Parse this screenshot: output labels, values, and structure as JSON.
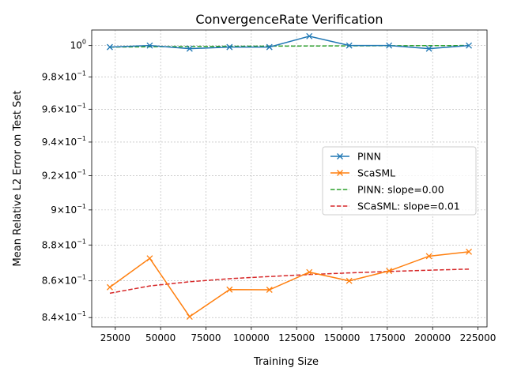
{
  "chart_data": {
    "type": "line",
    "title": "ConvergenceRate Verification",
    "xlabel": "Training Size",
    "ylabel": "Mean Relative L2 Error on Test Set",
    "xlim": [
      12000,
      230000
    ],
    "ylim": [
      0.835,
      1.01
    ],
    "yscale": "log",
    "grid": true,
    "legend_position": "center-right",
    "x_ticks": [
      {
        "value": 25000,
        "label": "25000"
      },
      {
        "value": 50000,
        "label": "50000"
      },
      {
        "value": 75000,
        "label": "75000"
      },
      {
        "value": 100000,
        "label": "100000"
      },
      {
        "value": 125000,
        "label": "125000"
      },
      {
        "value": 150000,
        "label": "150000"
      },
      {
        "value": 175000,
        "label": "175000"
      },
      {
        "value": 200000,
        "label": "200000"
      },
      {
        "value": 225000,
        "label": "225000"
      }
    ],
    "y_ticks": [
      {
        "value": 0.84,
        "base": "8.4",
        "exp": "−1"
      },
      {
        "value": 0.86,
        "base": "8.6",
        "exp": "−1"
      },
      {
        "value": 0.88,
        "base": "8.8",
        "exp": "−1"
      },
      {
        "value": 0.9,
        "base": "9",
        "exp": "−1"
      },
      {
        "value": 0.92,
        "base": "9.2",
        "exp": "−1"
      },
      {
        "value": 0.94,
        "base": "9.4",
        "exp": "−1"
      },
      {
        "value": 0.96,
        "base": "9.6",
        "exp": "−1"
      },
      {
        "value": 0.98,
        "base": "9.8",
        "exp": "−1"
      },
      {
        "value": 1.0,
        "base": "10",
        "exp": "0"
      }
    ],
    "series": [
      {
        "name": "PINN",
        "color": "#1f77b4",
        "style": "solid",
        "marker": "x",
        "x": [
          22000,
          44000,
          66000,
          88000,
          110000,
          132000,
          154000,
          176000,
          198000,
          220000
        ],
        "y": [
          0.999,
          1.0,
          0.998,
          0.999,
          0.999,
          1.006,
          1.0,
          1.0,
          0.998,
          1.0
        ]
      },
      {
        "name": "ScaSML",
        "color": "#ff7f0e",
        "style": "solid",
        "marker": "x",
        "x": [
          22000,
          44000,
          66000,
          88000,
          110000,
          132000,
          154000,
          176000,
          198000,
          220000
        ],
        "y": [
          0.8565,
          0.8725,
          0.8405,
          0.8552,
          0.8551,
          0.8648,
          0.86,
          0.8655,
          0.8737,
          0.8762
        ]
      },
      {
        "name": "PINN: slope=0.00",
        "color": "#2ca02c",
        "style": "dashed",
        "marker": "none",
        "x": [
          22000,
          44000,
          66000,
          88000,
          110000,
          132000,
          154000,
          176000,
          198000,
          220000
        ],
        "y": [
          0.999,
          0.9992,
          0.9994,
          0.9995,
          0.9996,
          0.9997,
          0.9998,
          0.9999,
          0.99995,
          1.0
        ]
      },
      {
        "name": "SCaSML: slope=0.01",
        "color": "#d62728",
        "style": "dashed",
        "marker": "none",
        "x": [
          22000,
          44000,
          66000,
          88000,
          110000,
          132000,
          154000,
          176000,
          198000,
          220000
        ],
        "y": [
          0.8532,
          0.8572,
          0.8595,
          0.8612,
          0.8624,
          0.8635,
          0.8644,
          0.8652,
          0.8659,
          0.8665
        ]
      }
    ]
  }
}
